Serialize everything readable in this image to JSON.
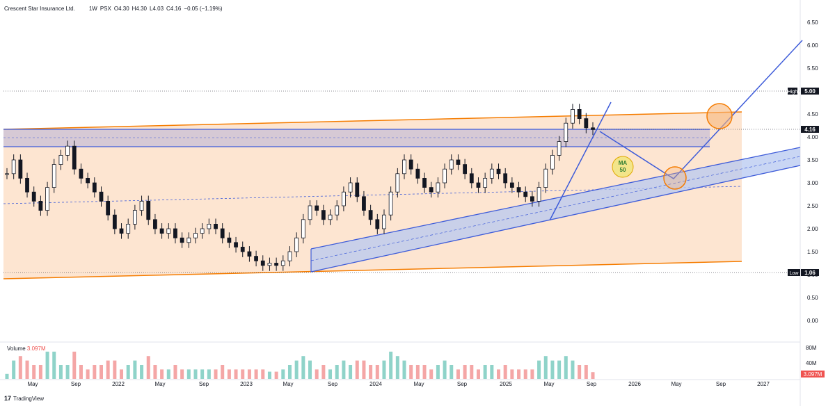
{
  "header": {
    "symbol": "Crescent Star Insurance Ltd.",
    "interval": "1W",
    "exchange": "PSX",
    "open": "O4.30",
    "high": "H4.30",
    "low": "L4.03",
    "close": "C4.16",
    "change": "−0.05 (−1.19%)"
  },
  "volume_label": {
    "title": "Volume",
    "value": "3.097M"
  },
  "brand": {
    "logo": "17",
    "name": "TradingView"
  },
  "price_badges": {
    "high_label": "High",
    "high_value": "5.00",
    "current_value": "4.16",
    "low_label": "Low",
    "low_value": "1.06"
  },
  "annotation": {
    "line1": "MA",
    "line2": "50"
  },
  "volume_axis": [
    "80M",
    "40M"
  ],
  "volume_current": "3.097M",
  "colors": {
    "candle": "#131722",
    "channel_fill": "#fde4cf",
    "channel_line": "#f57c00",
    "blue": "#3d5bd9",
    "band_fill": "#b7c8f0",
    "vol_up": "#8fd3c9",
    "vol_down": "#f4a6a6"
  },
  "chart_data": {
    "type": "candlestick",
    "price_axis_ticks": [
      "6.50",
      "6.00",
      "5.50",
      "5.00",
      "4.50",
      "4.00",
      "3.50",
      "3.00",
      "2.50",
      "2.00",
      "1.50",
      "1.00",
      "0.50",
      "0.00"
    ],
    "time_axis_ticks": [
      "May",
      "Sep",
      "2022",
      "May",
      "Sep",
      "2023",
      "May",
      "Sep",
      "2024",
      "May",
      "Sep",
      "2025",
      "May",
      "Sep",
      "2026",
      "May",
      "Sep",
      "2027"
    ],
    "ylim": [
      0,
      6.5
    ],
    "high": 5.0,
    "low": 1.06,
    "last": 4.16,
    "series": [
      {
        "values": [
          3.2,
          3.5,
          3.1,
          2.8,
          2.6,
          2.4,
          2.9,
          3.4,
          3.6,
          3.8,
          3.3,
          3.1,
          3.0,
          2.8,
          2.6,
          2.3,
          2.0,
          1.9,
          2.1,
          2.4,
          2.6,
          2.2,
          2.0,
          1.9,
          2.0,
          1.8,
          1.7,
          1.8,
          1.9,
          2.0,
          2.1,
          2.0,
          1.8,
          1.7,
          1.6,
          1.5,
          1.4,
          1.3,
          1.2,
          1.25,
          1.2,
          1.3,
          1.5,
          1.8,
          2.2,
          2.5,
          2.4,
          2.2,
          2.3,
          2.5,
          2.8,
          3.0,
          2.7,
          2.4,
          2.2,
          2.0,
          2.3,
          2.8,
          3.2,
          3.5,
          3.3,
          3.1,
          2.9,
          2.8,
          3.0,
          3.3,
          3.5,
          3.4,
          3.2,
          3.0,
          2.9,
          3.1,
          3.3,
          3.2,
          3.0,
          2.9,
          2.8,
          2.7,
          2.6,
          2.9,
          3.3,
          3.6,
          3.9,
          4.3,
          4.6,
          4.4,
          4.2,
          4.16
        ]
      }
    ]
  }
}
